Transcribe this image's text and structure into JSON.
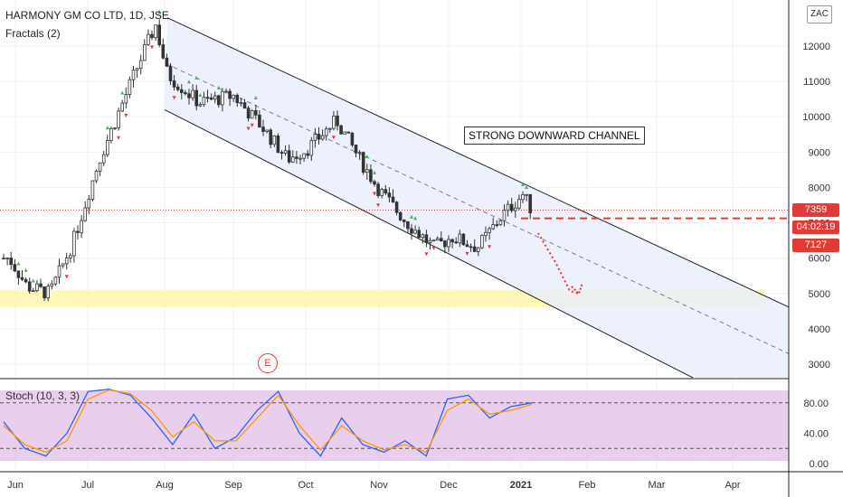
{
  "header": {
    "title": "HARMONY GM CO LTD, 1D, JSE",
    "indicator": "Fractals (2)"
  },
  "currency_button": "ZAC",
  "annotation": "STRONG DOWNWARD CHANNEL",
  "event_marker": "E",
  "stoch": {
    "label": "Stoch (10, 3, 3)"
  },
  "price_tags": {
    "last": {
      "label": "7359",
      "color": "#e53935"
    },
    "countdown": {
      "label": "04:02:19",
      "color": "#e53935"
    },
    "level": {
      "label": "7127",
      "color": "#e53935"
    }
  },
  "chart_data": [
    {
      "type": "candlestick",
      "title": "HARMONY GM CO LTD, 1D, JSE",
      "y_axis_ticks": [
        "3000",
        "4000",
        "5000",
        "6000",
        "7000",
        "8000",
        "9000",
        "10000",
        "11000",
        "12000"
      ],
      "x_axis_ticks": [
        "Jun",
        "Jul",
        "Aug",
        "Sep",
        "Oct",
        "Nov",
        "Dec",
        "2021",
        "Feb",
        "Mar",
        "Apr"
      ],
      "ylim": [
        2600,
        13200
      ],
      "series": [
        {
          "name": "price",
          "points": [
            {
              "date": "Jun",
              "value": 6000
            },
            {
              "date": "mid-Jun",
              "value": 5200
            },
            {
              "date": "late-Jun",
              "value": 5000
            },
            {
              "date": "early-Jul",
              "value": 6400
            },
            {
              "date": "mid-Jul",
              "value": 8800
            },
            {
              "date": "late-Jul",
              "value": 11300
            },
            {
              "date": "Jul-end",
              "value": 12600
            },
            {
              "date": "Aug",
              "value": 11200
            },
            {
              "date": "mid-Aug",
              "value": 10400
            },
            {
              "date": "Sep",
              "value": 10600
            },
            {
              "date": "mid-Sep",
              "value": 9700
            },
            {
              "date": "late-Sep",
              "value": 8800
            },
            {
              "date": "Oct",
              "value": 9100
            },
            {
              "date": "mid-Oct",
              "value": 9900
            },
            {
              "date": "late-Oct",
              "value": 8700
            },
            {
              "date": "Nov",
              "value": 7900
            },
            {
              "date": "mid-Nov",
              "value": 7000
            },
            {
              "date": "late-Nov",
              "value": 6300
            },
            {
              "date": "Dec",
              "value": 6600
            },
            {
              "date": "mid-Dec",
              "value": 6300
            },
            {
              "date": "late-Dec",
              "value": 7200
            },
            {
              "date": "2021",
              "value": 7800
            },
            {
              "date": "early-Jan",
              "value": 7359
            }
          ]
        }
      ],
      "drawings": {
        "channel": {
          "upper": [
            {
              "date": "Aug",
              "value": 12800
            },
            {
              "date": "Apr-end",
              "value": 3900
            }
          ],
          "lower": [
            {
              "date": "Aug",
              "value": 10200
            },
            {
              "date": "Apr",
              "value": 2700
            }
          ]
        },
        "support_zone": [
          4600,
          5100
        ],
        "resistance_line": 7127,
        "last_price": 7359,
        "projected_target": 5000
      }
    },
    {
      "type": "line",
      "title": "Stoch (10, 3, 3)",
      "y_axis_ticks": [
        "0.00",
        "40.00",
        "80.00"
      ],
      "ylim": [
        0,
        100
      ],
      "overbought": 80,
      "oversold": 20,
      "series": [
        {
          "name": "%K",
          "color": "#2962ff",
          "values": [
            55,
            20,
            10,
            40,
            95,
            98,
            90,
            60,
            25,
            65,
            20,
            35,
            70,
            95,
            40,
            10,
            60,
            25,
            15,
            30,
            10,
            85,
            90,
            60,
            75,
            80
          ]
        },
        {
          "name": "%D",
          "color": "#ff9800",
          "values": [
            50,
            25,
            15,
            30,
            85,
            97,
            92,
            70,
            35,
            55,
            30,
            30,
            60,
            90,
            50,
            18,
            50,
            30,
            18,
            25,
            15,
            70,
            85,
            65,
            70,
            78
          ]
        }
      ]
    }
  ]
}
